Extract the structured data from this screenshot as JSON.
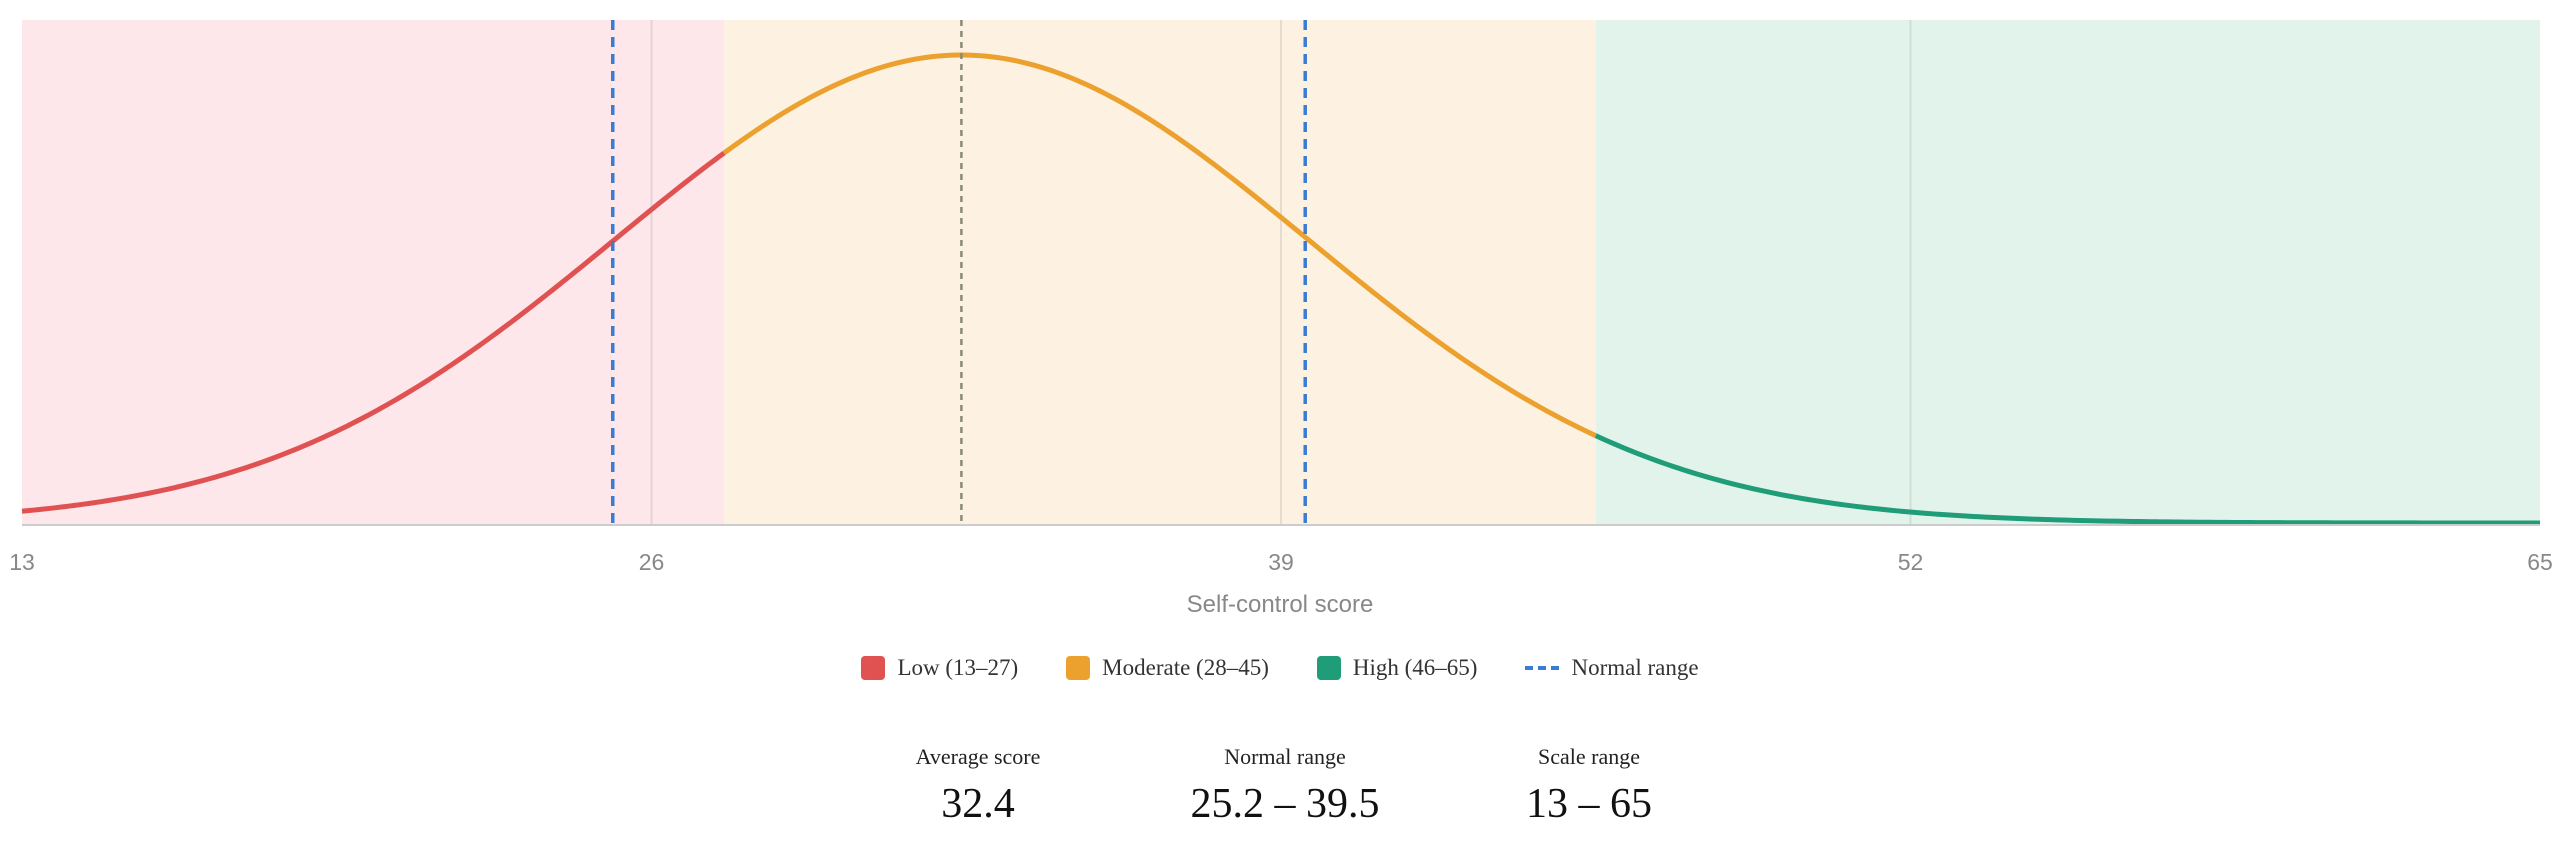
{
  "chart_data": {
    "type": "area",
    "xlabel": "Self-control score",
    "xlim": [
      13,
      65
    ],
    "x_ticks": [
      13,
      26,
      39,
      52,
      65
    ],
    "distribution": {
      "mean": 32.4,
      "sd": 7.15
    },
    "bands": [
      {
        "name": "Low (13–27)",
        "from": 13,
        "to": 27.5,
        "color": "#e05252",
        "fill": "#fde7ea"
      },
      {
        "name": "Moderate (28–45)",
        "from": 27.5,
        "to": 45.5,
        "color": "#eca12f",
        "fill": "#fdf2e2"
      },
      {
        "name": "High (46–65)",
        "from": 45.5,
        "to": 65,
        "color": "#1f9d78",
        "fill": "#e2f3ec"
      }
    ],
    "reference_lines": [
      {
        "x": 25.2,
        "style": "dashed",
        "color": "#3a7bd5"
      },
      {
        "x": 39.5,
        "style": "dashed",
        "color": "#3a7bd5"
      },
      {
        "x": 32.4,
        "style": "dotted",
        "color": "#8a8a7a"
      }
    ],
    "grid": true
  },
  "legend": {
    "low": "Low (13–27)",
    "moderate": "Moderate (28–45)",
    "high": "High (46–65)",
    "normal": "Normal range"
  },
  "stats": {
    "average_label": "Average score",
    "average_value": "32.4",
    "normal_label": "Normal range",
    "normal_value": "25.2 – 39.5",
    "scale_label": "Scale range",
    "scale_value": "13 – 65"
  }
}
